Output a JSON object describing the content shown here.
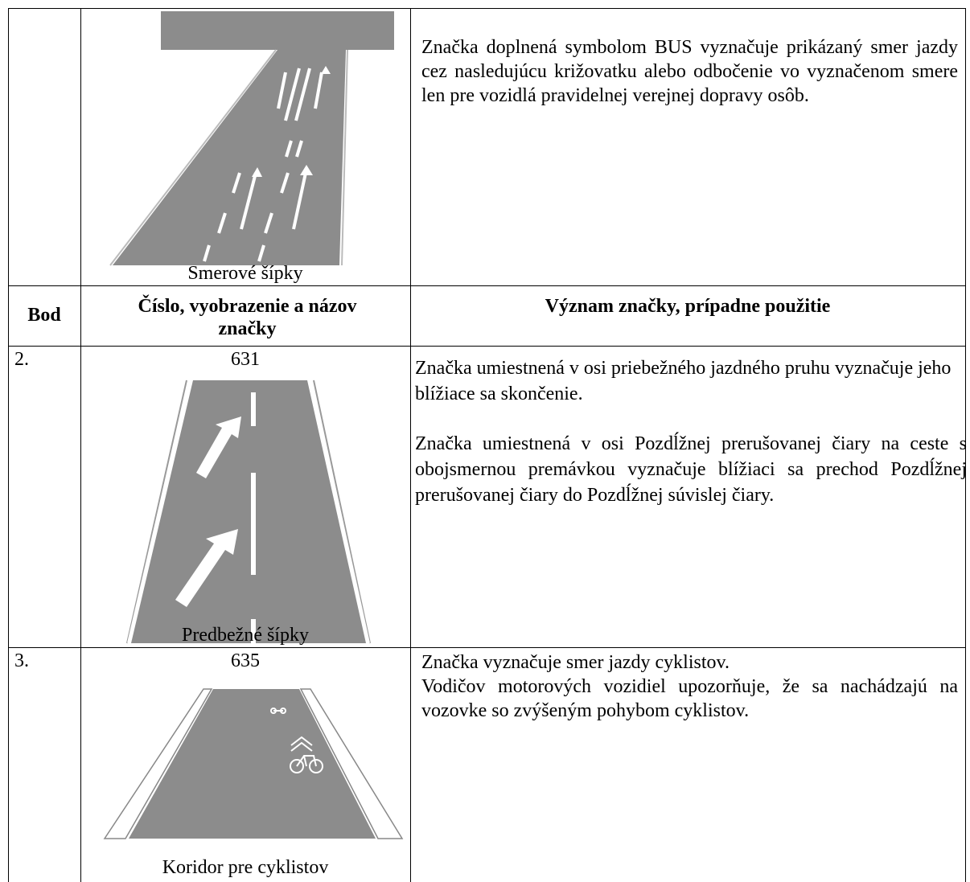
{
  "table": {
    "header": [
      "Bod",
      "Číslo, vyobrazenie a názov značky",
      "Význam značky, prípadne použitie"
    ],
    "rows": [
      {
        "caption": "Smerové šípky",
        "text": [
          "Značka doplnená symbolom BUS vyznačuje prikázaný smer jazdy cez nasledujúcu križovatku alebo odbočenie vo vyznačenom smere len pre vozidlá pravidelnej verejnej dopravy osôb."
        ]
      },
      {
        "bod": "2.",
        "number": "631",
        "caption": "Predbežné šípky",
        "text": [
          "Značka umiestnená v osi priebežného jazdného pruhu vyznačuje jeho blížiace sa skončenie.",
          "Značka umiestnená v osi Pozdĺžnej prerušovanej čiary na ceste s obojsmernou premávkou vyznačuje blížiaci sa prechod Pozdĺžnej prerušovanej čiary do Pozdĺžnej súvislej čiary."
        ]
      },
      {
        "bod": "3.",
        "number": "635",
        "caption": "Koridor pre cyklistov",
        "text": [
          "Značka vyznačuje smer jazdy cyklistov.",
          "Vodičov motorových vozidiel upozorňuje, že sa nachádzajú na vozovke so zvýšeným pohybom cyklistov."
        ]
      }
    ]
  }
}
